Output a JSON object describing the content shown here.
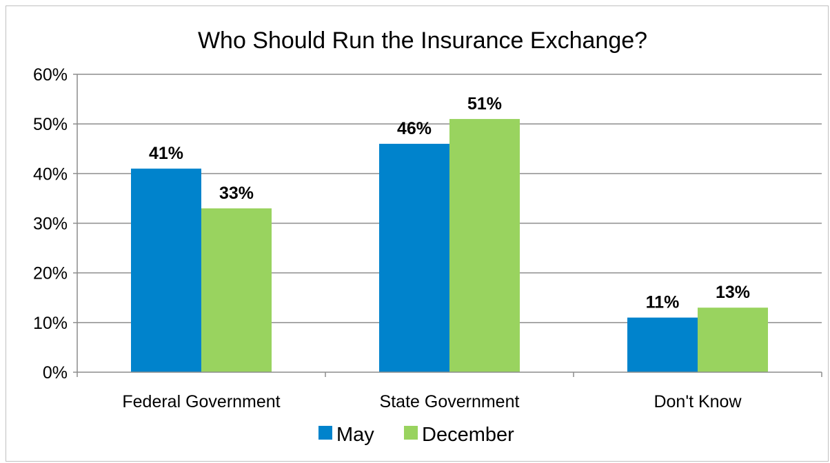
{
  "chart_data": {
    "type": "bar",
    "title": "Who Should Run the Insurance Exchange?",
    "xlabel": "",
    "ylabel": "",
    "categories": [
      "Federal Government",
      "State Government",
      "Don't Know"
    ],
    "series": [
      {
        "name": "May",
        "values": [
          41,
          46,
          11
        ],
        "labels": [
          "41%",
          "46%",
          "11%"
        ],
        "color": "#0083cc"
      },
      {
        "name": "December",
        "values": [
          33,
          51,
          13
        ],
        "labels": [
          "33%",
          "51%",
          "13%"
        ],
        "color": "#99d35f"
      }
    ],
    "ylim": [
      0,
      60
    ],
    "yticks": [
      0,
      10,
      20,
      30,
      40,
      50,
      60
    ],
    "ytick_labels": [
      "0%",
      "10%",
      "20%",
      "30%",
      "40%",
      "50%",
      "60%"
    ],
    "grid": true,
    "gridline_color": "#8c8c8c",
    "legend": "bottom-center"
  }
}
